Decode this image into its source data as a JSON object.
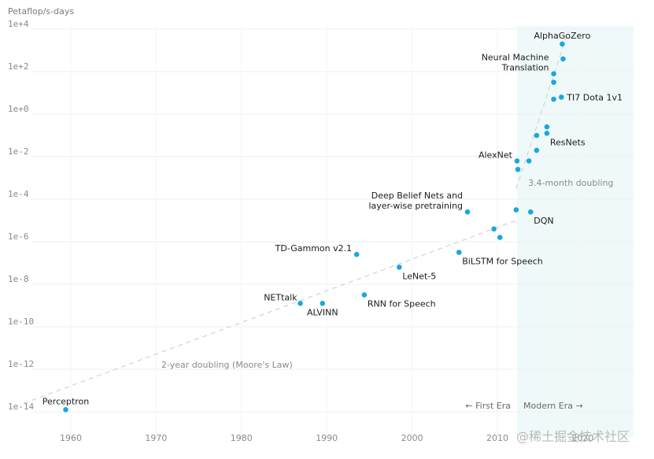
{
  "chart_data": {
    "type": "scatter",
    "title": "",
    "ylabel": "Petaflop/s-days",
    "xlabel": "",
    "yscale": "log",
    "xlim": [
      1955,
      2025
    ],
    "ylim_exp": [
      -15,
      4
    ],
    "y_ticks": [
      {
        "exp": 4,
        "label": "1e+4"
      },
      {
        "exp": 2,
        "label": "1e+2"
      },
      {
        "exp": 0,
        "label": "1e+0"
      },
      {
        "exp": -2,
        "label": "1e-2"
      },
      {
        "exp": -4,
        "label": "1e-4"
      },
      {
        "exp": -6,
        "label": "1e-6"
      },
      {
        "exp": -8,
        "label": "1e-8"
      },
      {
        "exp": -10,
        "label": "1e-10"
      },
      {
        "exp": -12,
        "label": "1e-12"
      },
      {
        "exp": -14,
        "label": "1e-14"
      }
    ],
    "x_ticks": [
      {
        "year": 1960,
        "label": "1960"
      },
      {
        "year": 1970,
        "label": "1970"
      },
      {
        "year": 1980,
        "label": "1980"
      },
      {
        "year": 1990,
        "label": "1990"
      },
      {
        "year": 2000,
        "label": "2000"
      },
      {
        "year": 2010,
        "label": "2010"
      },
      {
        "year": 2020,
        "label": "2020"
      }
    ],
    "grid": true,
    "point_color": "#1aa7e0",
    "points": [
      {
        "name": "Perceptron",
        "year": 1959.4,
        "log10": -13.9,
        "label": "Perceptron",
        "label_pos": "above"
      },
      {
        "name": "NETtalk",
        "year": 1986.9,
        "log10": -8.9,
        "label": "NETtalk",
        "label_pos": "above-left"
      },
      {
        "name": "ALVINN",
        "year": 1989.5,
        "log10": -8.9,
        "label": "ALVINN",
        "label_pos": "below"
      },
      {
        "name": "RNN for Speech",
        "year": 1994.4,
        "log10": -8.5,
        "label": "RNN for Speech",
        "label_pos": "below-right"
      },
      {
        "name": "TD-Gammon v2.1",
        "year": 1993.5,
        "log10": -6.6,
        "label": "TD-Gammon v2.1",
        "label_pos": "left"
      },
      {
        "name": "LeNet-5",
        "year": 1998.5,
        "log10": -7.2,
        "label": "LeNet-5",
        "label_pos": "below-right"
      },
      {
        "name": "BiLSTM for Speech",
        "year": 2005.5,
        "log10": -6.5,
        "label": "BiLSTM for Speech",
        "label_pos": "below-right"
      },
      {
        "name": "Deep Belief Nets and layer-wise pretraining",
        "year": 2006.5,
        "log10": -4.6,
        "label": [
          "Deep Belief Nets and",
          "layer-wise pretraining"
        ],
        "label_pos": "left-2line"
      },
      {
        "name": "",
        "year": 2009.6,
        "log10": -5.4,
        "label": ""
      },
      {
        "name": "",
        "year": 2010.3,
        "log10": -5.8,
        "label": ""
      },
      {
        "name": "",
        "year": 2012.2,
        "log10": -4.5,
        "label": ""
      },
      {
        "name": "DQN",
        "year": 2013.9,
        "log10": -4.6,
        "label": "DQN",
        "label_pos": "below-right"
      },
      {
        "name": "AlexNet",
        "year": 2012.3,
        "log10": -2.2,
        "label": "AlexNet",
        "label_pos": "left"
      },
      {
        "name": "",
        "year": 2012.4,
        "log10": -2.6,
        "label": ""
      },
      {
        "name": "",
        "year": 2013.7,
        "log10": -2.2,
        "label": ""
      },
      {
        "name": "",
        "year": 2014.6,
        "log10": -1.7,
        "label": ""
      },
      {
        "name": "",
        "year": 2014.6,
        "log10": -1.0,
        "label": ""
      },
      {
        "name": "ResNets",
        "year": 2015.8,
        "log10": -0.9,
        "label": "ResNets",
        "label_pos": "below-right"
      },
      {
        "name": "",
        "year": 2015.8,
        "log10": -0.6,
        "label": ""
      },
      {
        "name": "",
        "year": 2016.6,
        "log10": 0.7,
        "label": ""
      },
      {
        "name": "TI7 Dota 1v1",
        "year": 2017.5,
        "log10": 0.8,
        "label": "TI7 Dota 1v1",
        "label_pos": "right"
      },
      {
        "name": "",
        "year": 2016.6,
        "log10": 1.5,
        "label": ""
      },
      {
        "name": "Neural Machine Translation",
        "year": 2016.6,
        "log10": 1.9,
        "label": [
          "Neural Machine",
          "Translation"
        ],
        "label_pos": "left-2line"
      },
      {
        "name": "",
        "year": 2017.7,
        "log10": 2.6,
        "label": ""
      },
      {
        "name": "AlphaGoZero",
        "year": 2017.6,
        "log10": 3.3,
        "label": "AlphaGoZero",
        "label_pos": "above"
      }
    ],
    "trend_lines": [
      {
        "name": "2-year doubling (Moore's Law)",
        "label": "2-year doubling (Moore's Law)",
        "from": {
          "year": 1954.5,
          "log10": -13.6
        },
        "to": {
          "year": 2012.2,
          "log10": -5.0
        }
      },
      {
        "name": "3.4-month doubling",
        "label": "3.4-month doubling",
        "from": {
          "year": 2012.2,
          "log10": -3.5
        },
        "to": {
          "year": 2018.3,
          "log10": 3.9
        }
      }
    ],
    "eras": [
      {
        "name": "First Era",
        "label": "← First Era"
      },
      {
        "name": "Modern Era",
        "label": "Modern Era →",
        "start_year": 2012.3,
        "end_year": 2025.9,
        "shade_color": "#f0f9fa"
      }
    ]
  },
  "watermark": "@稀土掘金技术社区"
}
